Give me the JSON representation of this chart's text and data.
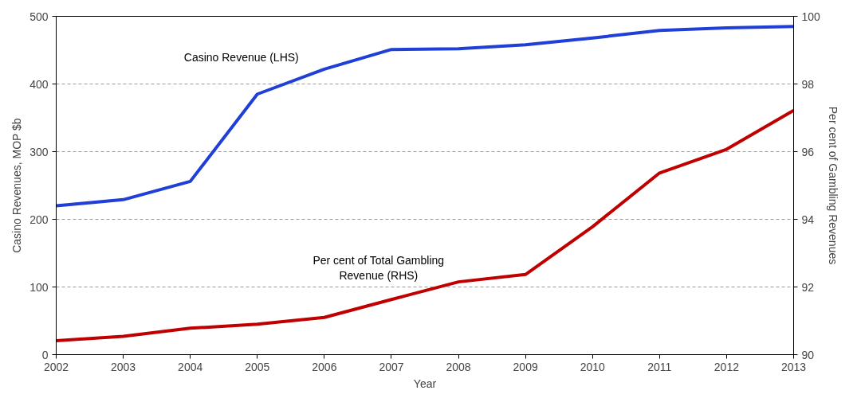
{
  "chart_data": {
    "type": "line",
    "xlabel": "Year",
    "ylabel": "Casino Revenues, MOP $b",
    "y2label": "Per cent of Gambling Revenues",
    "x": [
      2002,
      2003,
      2004,
      2005,
      2006,
      2007,
      2008,
      2009,
      2010,
      2011,
      2012,
      2013
    ],
    "series": [
      {
        "name": "Casino Revenue (LHS)",
        "color": "#1f3fd6",
        "values": [
          220,
          229,
          256,
          385,
          422,
          451,
          452,
          458,
          468,
          479,
          483,
          485
        ]
      },
      {
        "name": "Per cent of Total Gambling Revenue (RHS)",
        "color": "#c00000",
        "axis": "y2",
        "values": [
          90.41,
          90.54,
          90.78,
          90.9,
          91.1,
          91.63,
          92.15,
          92.37,
          93.78,
          95.37,
          96.07,
          97.22
        ]
      }
    ],
    "xlim": [
      2002,
      2013
    ],
    "xticks": [
      2002,
      2003,
      2004,
      2005,
      2006,
      2007,
      2008,
      2009,
      2010,
      2011,
      2012,
      2013
    ],
    "ylim": [
      0,
      500
    ],
    "yticks": [
      0,
      100,
      200,
      300,
      400,
      500
    ],
    "y2lim": [
      90,
      100
    ],
    "y2ticks": [
      90,
      92,
      94,
      96,
      98,
      100
    ],
    "grid": "y",
    "marker": "none",
    "line_style": "solid"
  }
}
